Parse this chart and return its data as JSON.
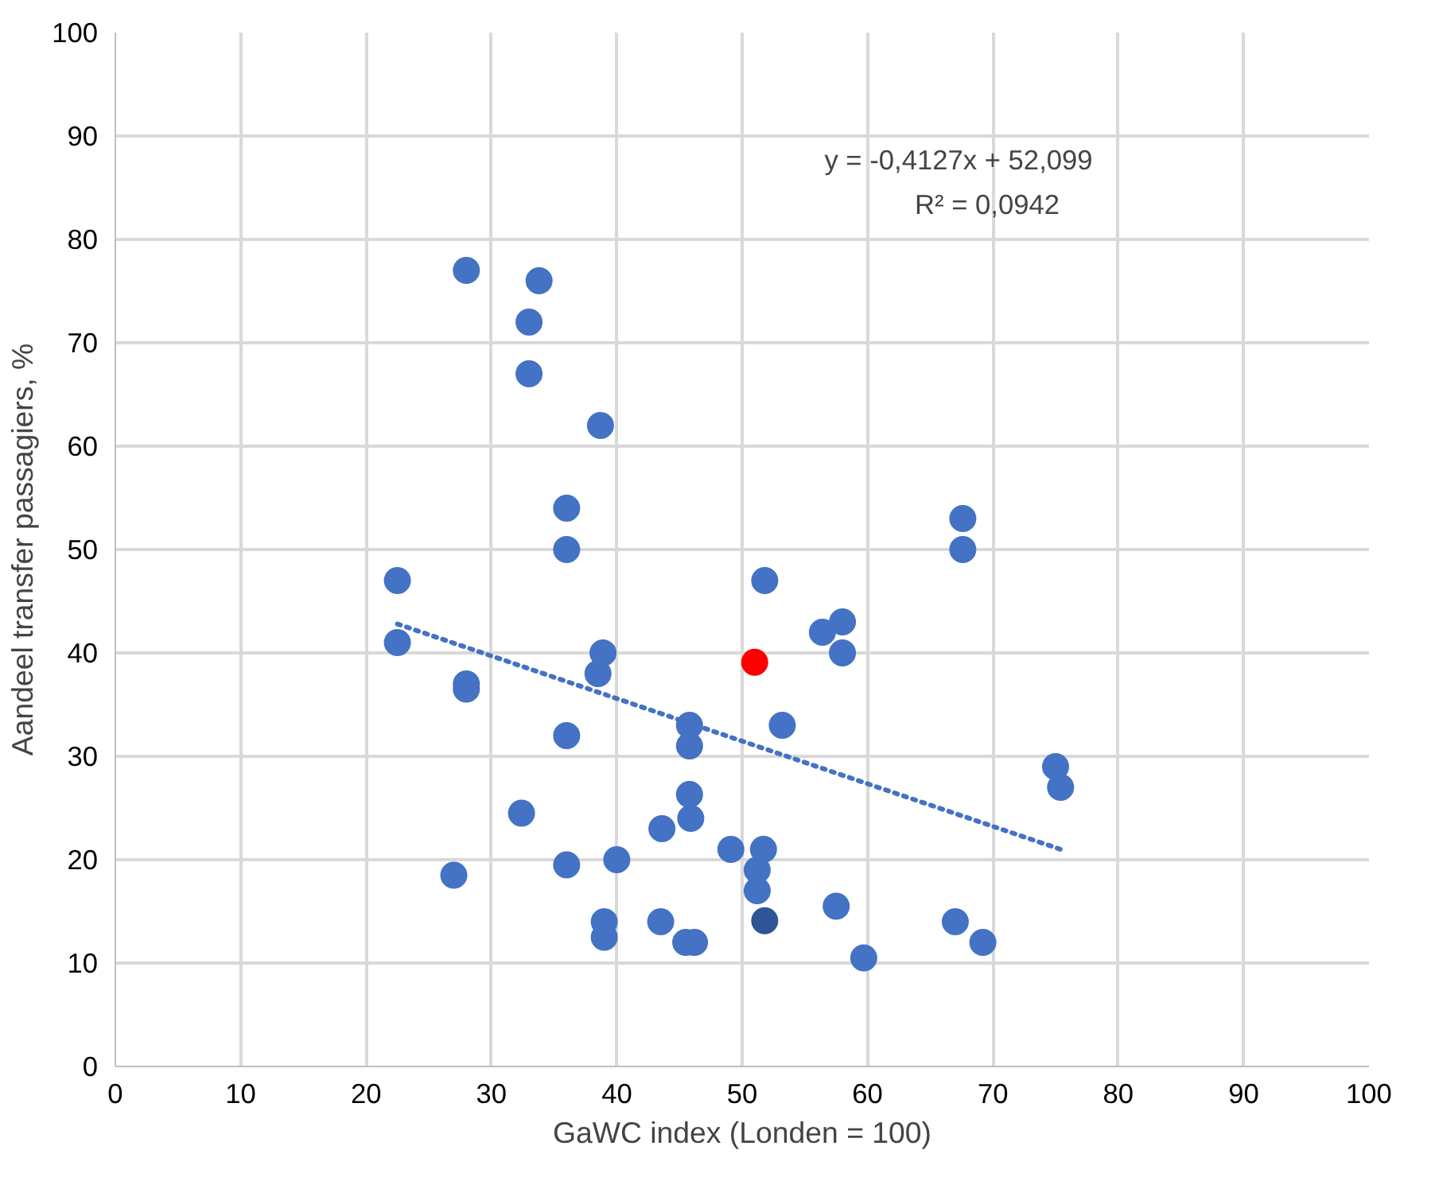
{
  "chart_data": {
    "type": "scatter",
    "xlabel": "GaWC index (Londen = 100)",
    "ylabel": "Aandeel transfer passagiers, %",
    "xlim": [
      0,
      100
    ],
    "ylim": [
      0,
      100
    ],
    "xticks": [
      0,
      10,
      20,
      30,
      40,
      50,
      60,
      70,
      80,
      90,
      100
    ],
    "yticks": [
      0,
      10,
      20,
      30,
      40,
      50,
      60,
      70,
      80,
      90,
      100
    ],
    "grid": true,
    "annotations": [
      "y = -0,4127x + 52,099",
      "R² = 0,0942"
    ],
    "series": [
      {
        "color": "#4472c4",
        "marker": "circle",
        "x": [
          22.5,
          22.5,
          28,
          33.8,
          33,
          33,
          38.7,
          36,
          36,
          28,
          28,
          38.5,
          38.9,
          36,
          32.4,
          27,
          36,
          40,
          39,
          39,
          43.5,
          43.6,
          45.8,
          45.8,
          45.8,
          45.9,
          45.5,
          46.2,
          49.1,
          51.2,
          51.2,
          51.7,
          51.8,
          53.2,
          56.4,
          58,
          58,
          57.5,
          59.7,
          67.6,
          67.6,
          67,
          69.2,
          75,
          75.4
        ],
        "values": [
          47,
          41,
          77,
          76,
          72,
          67,
          62,
          54,
          50,
          37,
          36.5,
          38,
          40,
          32,
          24.5,
          18.5,
          19.5,
          20,
          14,
          12.5,
          14,
          23,
          33,
          31,
          26.3,
          24,
          12,
          12,
          21,
          19,
          17,
          21,
          47,
          33,
          42,
          43,
          40,
          15.5,
          10.5,
          53,
          50,
          14,
          12,
          29,
          27
        ]
      },
      {
        "color": "#ff0000",
        "marker": "circle",
        "x": [
          51
        ],
        "values": [
          39.1
        ]
      },
      {
        "color": "#2f5597",
        "marker": "circle",
        "x": [
          51.8
        ],
        "values": [
          14.1
        ]
      },
      {
        "type": "line",
        "color": "#4472c4",
        "line_style": "dotted",
        "x": [
          22.5,
          75.4
        ],
        "values": [
          42.8,
          21.0
        ]
      }
    ]
  }
}
